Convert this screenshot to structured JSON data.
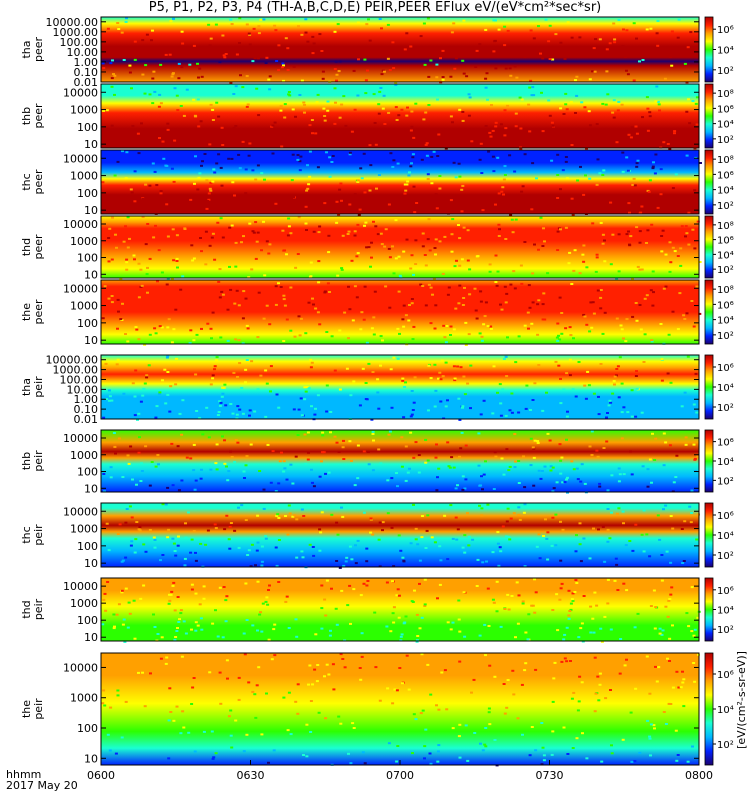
{
  "figure": {
    "title": "P5, P1, P2, P3, P4 (TH-A,B,C,D,E) PEIR,PEER EFlux eV/(eV*cm²*sec*sr)",
    "time_format_label": "hhmm",
    "date_label": "2017 May 20"
  },
  "colorbar": {
    "label": "[eV/(cm²-s-sr-eV)]",
    "colors": [
      "#1b0070",
      "#0022ff",
      "#00b8ff",
      "#1affd2",
      "#2cff00",
      "#ffff00",
      "#ffa000",
      "#ff2000",
      "#b00000"
    ]
  },
  "chart_data": {
    "type": "heatmap",
    "x_ticks": [
      "0600",
      "0630",
      "0700",
      "0730",
      "0800"
    ],
    "xlim": [
      "06:00",
      "08:00"
    ],
    "panels": [
      {
        "probe": "tha",
        "species": "peer",
        "scale": "log",
        "ylim": [
          0.01,
          30000
        ],
        "y_ticks": [
          "10000.00",
          "1000.00",
          "100.00",
          "10.00",
          "1.00",
          "0.10",
          "0.01"
        ],
        "cbar_ticks": [
          "10⁶",
          "10⁴",
          "10²"
        ]
      },
      {
        "probe": "thb",
        "species": "peer",
        "scale": "log",
        "ylim": [
          6,
          30000
        ],
        "y_ticks": [
          "10000",
          "1000",
          "100",
          "10"
        ],
        "cbar_ticks": [
          "10⁸",
          "10⁶",
          "10⁴",
          "10²"
        ]
      },
      {
        "probe": "thc",
        "species": "peer",
        "scale": "log",
        "ylim": [
          6,
          30000
        ],
        "y_ticks": [
          "10000",
          "1000",
          "100",
          "10"
        ],
        "cbar_ticks": [
          "10⁸",
          "10⁶",
          "10⁴",
          "10²"
        ]
      },
      {
        "probe": "thd",
        "species": "peer",
        "scale": "log",
        "ylim": [
          6,
          30000
        ],
        "y_ticks": [
          "10000",
          "1000",
          "100",
          "10"
        ],
        "cbar_ticks": [
          "10⁸",
          "10⁶",
          "10⁴",
          "10²"
        ]
      },
      {
        "probe": "the",
        "species": "peer",
        "scale": "log",
        "ylim": [
          6,
          30000
        ],
        "y_ticks": [
          "10000",
          "1000",
          "100",
          "10"
        ],
        "cbar_ticks": [
          "10⁸",
          "10⁶",
          "10⁴",
          "10²"
        ]
      },
      {
        "probe": "tha",
        "species": "peir",
        "scale": "log",
        "ylim": [
          0.01,
          30000
        ],
        "y_ticks": [
          "10000.00",
          "1000.00",
          "100.00",
          "10.00",
          "1.00",
          "0.10",
          "0.01"
        ],
        "cbar_ticks": [
          "10⁶",
          "10⁴",
          "10²"
        ]
      },
      {
        "probe": "thb",
        "species": "peir",
        "scale": "log",
        "ylim": [
          6,
          30000
        ],
        "y_ticks": [
          "10000",
          "1000",
          "100",
          "10"
        ],
        "cbar_ticks": [
          "10⁶",
          "10⁴",
          "10²"
        ]
      },
      {
        "probe": "thc",
        "species": "peir",
        "scale": "log",
        "ylim": [
          6,
          30000
        ],
        "y_ticks": [
          "10000",
          "1000",
          "100",
          "10"
        ],
        "cbar_ticks": [
          "10⁶",
          "10⁴",
          "10²"
        ]
      },
      {
        "probe": "thd",
        "species": "peir",
        "scale": "log",
        "ylim": [
          6,
          30000
        ],
        "y_ticks": [
          "10000",
          "1000",
          "100",
          "10"
        ],
        "cbar_ticks": [
          "10⁶",
          "10⁴",
          "10²"
        ]
      },
      {
        "probe": "the",
        "species": "peir",
        "scale": "log",
        "ylim": [
          6,
          30000
        ],
        "y_ticks": [
          "10000",
          "1000",
          "100",
          "10"
        ],
        "cbar_ticks": [
          "10⁶",
          "10⁴",
          "10²"
        ]
      }
    ]
  }
}
